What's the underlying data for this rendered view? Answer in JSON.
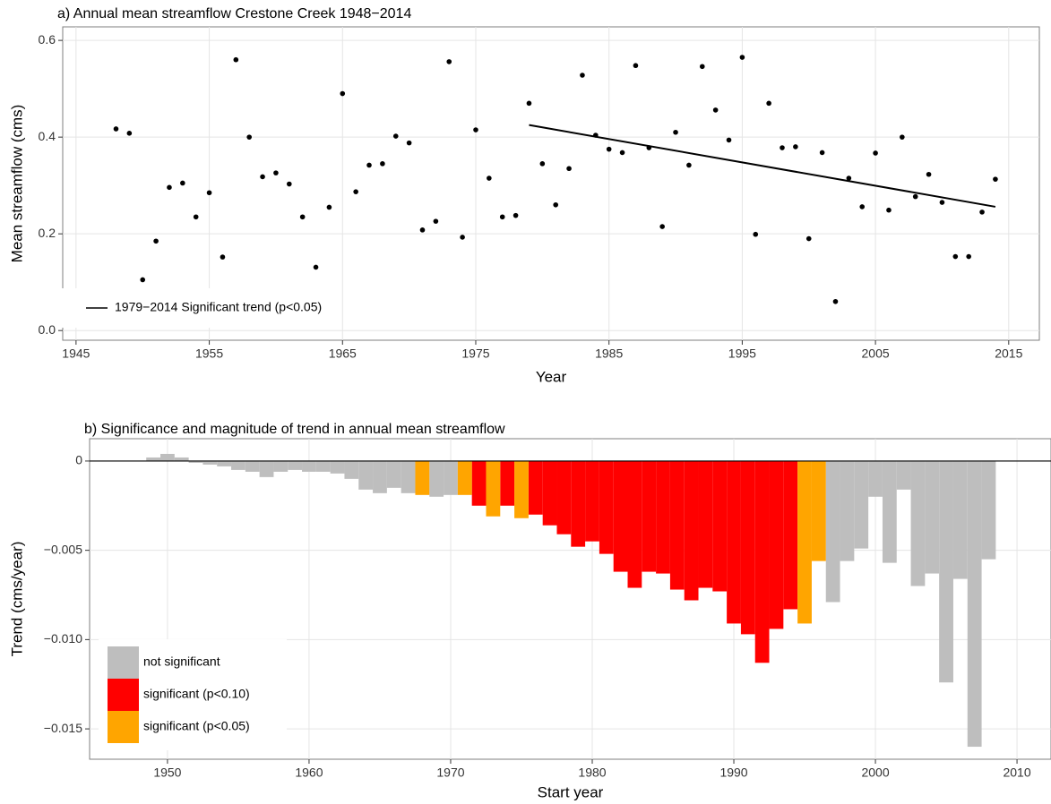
{
  "chart_data": [
    {
      "type": "scatter",
      "title": "a) Annual mean streamflow Crestone Creek 1948−2014",
      "x_label": "Year",
      "y_label": "Mean streamflow (cms)",
      "x": [
        1948,
        1949,
        1950,
        1951,
        1952,
        1953,
        1954,
        1955,
        1956,
        1957,
        1958,
        1959,
        1960,
        1961,
        1962,
        1963,
        1964,
        1965,
        1966,
        1967,
        1968,
        1969,
        1970,
        1971,
        1972,
        1973,
        1974,
        1975,
        1976,
        1977,
        1978,
        1979,
        1980,
        1981,
        1982,
        1983,
        1984,
        1985,
        1986,
        1987,
        1988,
        1989,
        1990,
        1991,
        1992,
        1993,
        1994,
        1995,
        1996,
        1997,
        1998,
        1999,
        2000,
        2001,
        2002,
        2003,
        2004,
        2005,
        2006,
        2007,
        2008,
        2009,
        2010,
        2011,
        2012,
        2013,
        2014
      ],
      "values": [
        0.417,
        0.408,
        0.105,
        0.185,
        0.296,
        0.305,
        0.235,
        0.285,
        0.152,
        0.56,
        0.4,
        0.318,
        0.326,
        0.303,
        0.235,
        0.131,
        0.255,
        0.49,
        0.287,
        0.342,
        0.345,
        0.402,
        0.388,
        0.208,
        0.226,
        0.556,
        0.193,
        0.415,
        0.315,
        0.235,
        0.238,
        0.47,
        0.345,
        0.26,
        0.335,
        0.528,
        0.404,
        0.375,
        0.368,
        0.548,
        0.378,
        0.215,
        0.41,
        0.342,
        0.546,
        0.456,
        0.394,
        0.565,
        0.199,
        0.47,
        0.378,
        0.38,
        0.19,
        0.368,
        0.06,
        0.315,
        0.256,
        0.367,
        0.249,
        0.4,
        0.277,
        0.323,
        0.265,
        0.153,
        0.153,
        0.245,
        0.313
      ],
      "color": "#000000",
      "trend": {
        "label": "1979−2014 Significant trend (p<0.05)",
        "x": [
          1979,
          2014
        ],
        "y": [
          0.425,
          0.256
        ],
        "color": "#000000"
      },
      "legend": "bottom-left",
      "grid": true,
      "xlim": [
        1944,
        2017.3
      ],
      "xticks": [
        1945,
        1955,
        1965,
        1975,
        1985,
        1995,
        2005,
        2015
      ],
      "ylim": [
        -0.02,
        0.628
      ],
      "yticks": [
        {
          "value": 0,
          "label": "0.0"
        },
        0.2,
        0.4,
        0.6
      ]
    },
    {
      "type": "bar",
      "title": "b) Significance and magnitude of trend in annual mean streamflow",
      "x_label": "Start year",
      "y_label": "Trend (cms/year)",
      "x": [
        1949,
        1950,
        1951,
        1952,
        1953,
        1954,
        1955,
        1956,
        1957,
        1958,
        1959,
        1960,
        1961,
        1962,
        1963,
        1964,
        1965,
        1966,
        1967,
        1968,
        1969,
        1970,
        1971,
        1972,
        1973,
        1974,
        1975,
        1976,
        1977,
        1978,
        1979,
        1980,
        1981,
        1982,
        1983,
        1984,
        1985,
        1986,
        1987,
        1988,
        1989,
        1990,
        1991,
        1992,
        1993,
        1994,
        1995,
        1996,
        1997,
        1998,
        1999,
        2000,
        2001,
        2002,
        2003,
        2004,
        2005,
        2006,
        2007,
        2008
      ],
      "series": [
        {
          "name": "not significant",
          "color": "#bebebe",
          "values": [
            0.0002,
            0.0004,
            0.0002,
            -0.0001,
            -0.0002,
            -0.0003,
            -0.0005,
            -0.0006,
            -0.0009,
            -0.0006,
            -0.0005,
            -0.0006,
            -0.0006,
            -0.0007,
            -0.001,
            -0.0016,
            -0.0018,
            -0.0015,
            -0.0018,
            null,
            -0.002,
            -0.0019,
            null,
            null,
            null,
            null,
            null,
            null,
            null,
            null,
            null,
            null,
            null,
            null,
            null,
            null,
            null,
            null,
            null,
            null,
            null,
            null,
            null,
            null,
            null,
            null,
            null,
            null,
            -0.0079,
            -0.0056,
            -0.0049,
            -0.002,
            -0.0057,
            -0.0016,
            -0.007,
            -0.0063,
            -0.0124,
            -0.0066,
            -0.016,
            -0.0055
          ]
        },
        {
          "name": "significant (p<0.10)",
          "color": "#ff0000",
          "values": [
            null,
            null,
            null,
            null,
            null,
            null,
            null,
            null,
            null,
            null,
            null,
            null,
            null,
            null,
            null,
            null,
            null,
            null,
            null,
            null,
            null,
            null,
            null,
            -0.0025,
            null,
            -0.0025,
            null,
            -0.003,
            -0.0036,
            -0.0041,
            -0.0048,
            -0.0045,
            -0.0052,
            -0.0062,
            -0.0071,
            -0.0062,
            -0.0063,
            -0.0072,
            -0.0078,
            -0.0071,
            -0.0073,
            -0.0091,
            -0.0097,
            -0.0113,
            -0.0094,
            -0.0083,
            null,
            null,
            null,
            null,
            null,
            null,
            null,
            null,
            null,
            null,
            null,
            null,
            null,
            null
          ]
        },
        {
          "name": "significant (p<0.05)",
          "color": "#ffa500",
          "values": [
            null,
            null,
            null,
            null,
            null,
            null,
            null,
            null,
            null,
            null,
            null,
            null,
            null,
            null,
            null,
            null,
            null,
            null,
            null,
            -0.0019,
            null,
            null,
            -0.0019,
            null,
            -0.0031,
            null,
            -0.0032,
            null,
            null,
            null,
            null,
            null,
            null,
            null,
            null,
            null,
            null,
            null,
            null,
            null,
            null,
            null,
            null,
            null,
            null,
            null,
            -0.0091,
            -0.0056,
            null,
            null,
            null,
            null,
            null,
            null,
            null,
            null,
            null,
            null,
            null,
            null
          ]
        }
      ],
      "legend": "bottom-left",
      "grid": true,
      "xlim": [
        1944.5,
        2012.4
      ],
      "xticks": [
        1950,
        1960,
        1970,
        1980,
        1990,
        2000,
        2010
      ],
      "ylim": [
        -0.0167,
        0.00125
      ],
      "yticks": [
        0,
        {
          "value": -0.005,
          "label": "−0.005"
        },
        {
          "value": -0.01,
          "label": "−0.010"
        },
        {
          "value": -0.015,
          "label": "−0.015"
        }
      ]
    }
  ]
}
